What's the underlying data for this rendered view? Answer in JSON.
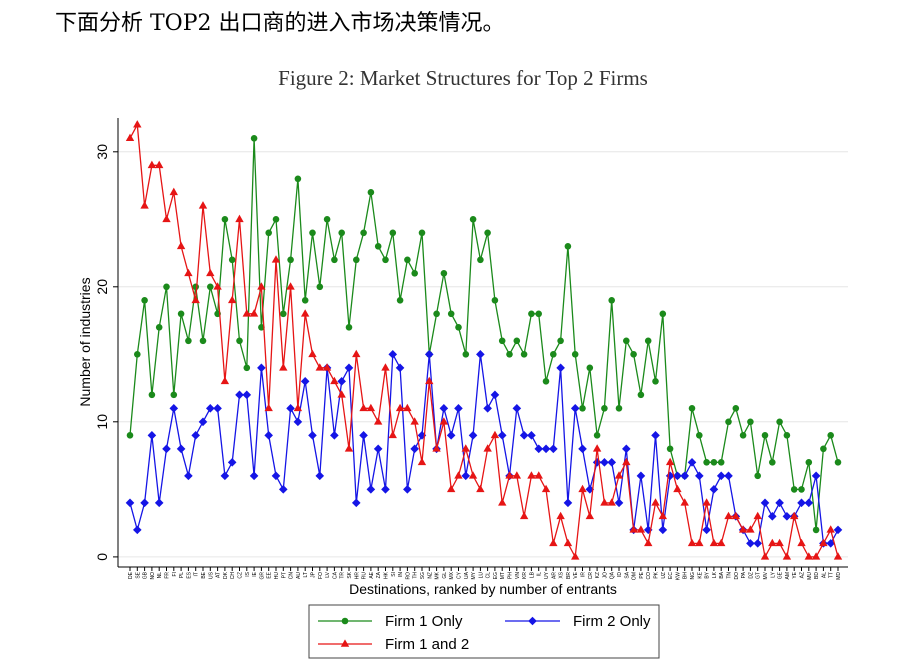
{
  "intro_text": "下面分析 TOP2 出口商的进入市场决策情况。",
  "chart_data": {
    "type": "line",
    "title": "Figure 2: Market Structures for Top 2 Firms",
    "xlabel": "Destinations, ranked by number of entrants",
    "ylabel": "Number of industries",
    "yticks": [
      0,
      10,
      20,
      30
    ],
    "ylim": [
      -0.75,
      32.5
    ],
    "grid": true,
    "legend_position": "bottom",
    "categories": [
      "DE",
      "SE",
      "GB",
      "NO",
      "NL",
      "FR",
      "FI",
      "PL",
      "ES",
      "IT",
      "BE",
      "US",
      "AT",
      "DK",
      "CH",
      "CZ",
      "IS",
      "IE",
      "GR",
      "EE",
      "HU",
      "PT",
      "CN",
      "AU",
      "LT",
      "JP",
      "FO",
      "LV",
      "CA",
      "TR",
      "SK",
      "HR",
      "RU",
      "AE",
      "ZA",
      "HK",
      "SI",
      "IN",
      "RO",
      "TH",
      "SG",
      "NZ",
      "MK",
      "GL",
      "MX",
      "CY",
      "UA",
      "MY",
      "LU",
      "CL",
      "EG",
      "MT",
      "PH",
      "VN",
      "KR",
      "LB",
      "IL",
      "UY",
      "AR",
      "XS",
      "BR",
      "VE",
      "IR",
      "CR",
      "KZ",
      "JO",
      "QA",
      "ID",
      "SA",
      "OM",
      "PE",
      "CO",
      "PK",
      "UZ",
      "EC",
      "KW",
      "BH",
      "NG",
      "KE",
      "BY",
      "LK",
      "BA",
      "TN",
      "DO",
      "PA",
      "DZ",
      "GT",
      "MV",
      "LY",
      "GE",
      "AM",
      "YE",
      "AZ",
      "MU",
      "BD",
      "AL",
      "TT",
      "MD"
    ],
    "series": [
      {
        "name": "Firm 1 Only",
        "marker": "circle",
        "color": "#1b8a1b",
        "values": [
          9,
          15,
          19,
          12,
          17,
          20,
          12,
          18,
          16,
          20,
          16,
          20,
          18,
          25,
          22,
          16,
          14,
          31,
          17,
          24,
          25,
          18,
          22,
          28,
          19,
          24,
          20,
          25,
          22,
          24,
          17,
          22,
          24,
          27,
          23,
          22,
          24,
          19,
          22,
          21,
          24,
          15,
          18,
          21,
          18,
          17,
          15,
          25,
          22,
          24,
          19,
          16,
          15,
          16,
          15,
          18,
          18,
          13,
          15,
          16,
          23,
          15,
          11,
          14,
          9,
          11,
          19,
          11,
          16,
          15,
          12,
          16,
          13,
          18,
          8,
          6,
          6,
          11,
          9,
          7,
          7,
          7,
          10,
          11,
          9,
          10,
          6,
          9,
          7,
          10,
          9,
          5,
          5,
          7,
          2,
          8,
          9,
          7
        ]
      },
      {
        "name": "Firm 2 Only",
        "marker": "diamond",
        "color": "#1515e6",
        "values": [
          4,
          2,
          4,
          9,
          4,
          8,
          11,
          8,
          6,
          9,
          10,
          11,
          11,
          6,
          7,
          12,
          12,
          6,
          14,
          9,
          6,
          5,
          11,
          10,
          13,
          9,
          6,
          14,
          9,
          13,
          14,
          4,
          9,
          5,
          8,
          5,
          15,
          14,
          5,
          8,
          9,
          15,
          8,
          11,
          9,
          11,
          6,
          9,
          15,
          11,
          12,
          9,
          6,
          11,
          9,
          9,
          8,
          8,
          8,
          14,
          4,
          11,
          8,
          5,
          7,
          7,
          7,
          4,
          8,
          2,
          6,
          2,
          9,
          2,
          6,
          6,
          6,
          7,
          6,
          2,
          5,
          6,
          6,
          3,
          2,
          1,
          1,
          4,
          3,
          4,
          3,
          3,
          4,
          4,
          6,
          1,
          1,
          2
        ]
      },
      {
        "name": "Firm 1 and 2",
        "marker": "triangle",
        "color": "#e61515",
        "values": [
          31,
          32,
          26,
          29,
          29,
          25,
          27,
          23,
          21,
          19,
          26,
          21,
          20,
          13,
          19,
          25,
          18,
          18,
          20,
          11,
          22,
          14,
          20,
          11,
          18,
          15,
          14,
          14,
          13,
          12,
          8,
          15,
          11,
          11,
          10,
          14,
          9,
          11,
          11,
          10,
          7,
          13,
          8,
          10,
          5,
          6,
          8,
          6,
          5,
          8,
          9,
          4,
          6,
          6,
          3,
          6,
          6,
          5,
          1,
          3,
          1,
          0,
          5,
          3,
          8,
          4,
          4,
          6,
          7,
          2,
          2,
          1,
          4,
          3,
          7,
          5,
          4,
          1,
          1,
          4,
          1,
          1,
          3,
          3,
          2,
          2,
          3,
          0,
          1,
          1,
          0,
          3,
          1,
          0,
          0,
          1,
          2,
          0
        ]
      }
    ]
  }
}
